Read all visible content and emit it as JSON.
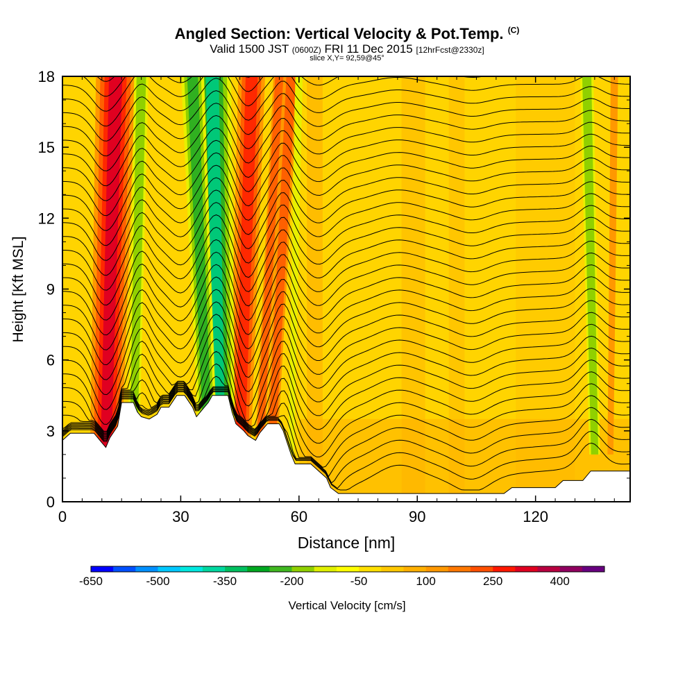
{
  "chart_data": {
    "type": "heatmap",
    "title": "Angled Section: Vertical Velocity & Pot.Temp.",
    "title_mark": "(C)",
    "subtitle_main": "Valid 1500 JST",
    "subtitle_utc": "(0600Z)",
    "subtitle_date": "FRI 11 Dec 2015",
    "subtitle_run": "[12hrFcst@2330z]",
    "slice_note": "slice X,Y= 92,59@45°",
    "xlabel": "Distance [nm]",
    "ylabel": "Height [Kft MSL]",
    "xlim": [
      0,
      144
    ],
    "ylim": [
      0,
      18
    ],
    "x_ticks": [
      "0",
      "30",
      "60",
      "90",
      "120"
    ],
    "y_ticks": [
      "0",
      "3",
      "6",
      "9",
      "12",
      "15",
      "18"
    ],
    "colorbar": {
      "label": "Vertical Velocity [cm/s]",
      "tick_labels": [
        "-650",
        "-500",
        "-350",
        "-200",
        "-50",
        "100",
        "250",
        "400"
      ],
      "colors": [
        "#0000ff",
        "#0050ff",
        "#0090ff",
        "#00c8ff",
        "#00e8e0",
        "#00d8a0",
        "#00c060",
        "#00a820",
        "#40b820",
        "#90d000",
        "#e0f000",
        "#ffff00",
        "#ffe000",
        "#ffc800",
        "#ffb000",
        "#ff9800",
        "#ff7800",
        "#ff5000",
        "#ff1800",
        "#e00020",
        "#b80040",
        "#900060",
        "#680080"
      ]
    },
    "terrain_kft": [
      [
        0,
        2.6
      ],
      [
        2,
        2.9
      ],
      [
        8,
        2.9
      ],
      [
        10,
        2.5
      ],
      [
        11,
        2.3
      ],
      [
        12,
        2.7
      ],
      [
        14,
        3.2
      ],
      [
        15,
        4.2
      ],
      [
        18,
        4.2
      ],
      [
        19,
        3.8
      ],
      [
        20,
        3.6
      ],
      [
        22,
        3.5
      ],
      [
        24,
        3.7
      ],
      [
        25,
        4
      ],
      [
        27,
        4
      ],
      [
        29,
        4.5
      ],
      [
        31,
        4.5
      ],
      [
        33,
        4
      ],
      [
        34,
        3.6
      ],
      [
        35,
        3.8
      ],
      [
        37,
        4.2
      ],
      [
        38,
        4.5
      ],
      [
        42,
        4.5
      ],
      [
        43,
        3.8
      ],
      [
        44,
        3.3
      ],
      [
        46,
        3
      ],
      [
        47,
        2.8
      ],
      [
        49,
        2.6
      ],
      [
        50,
        2.9
      ],
      [
        52,
        3.3
      ],
      [
        55,
        3.3
      ],
      [
        56,
        3.0
      ],
      [
        57,
        2.5
      ],
      [
        58,
        2.0
      ],
      [
        59,
        1.6
      ],
      [
        63,
        1.6
      ],
      [
        65,
        1.3
      ],
      [
        67,
        1.0
      ],
      [
        68,
        0.6
      ],
      [
        70,
        0.35
      ],
      [
        112,
        0.35
      ],
      [
        114,
        0.6
      ],
      [
        125,
        0.6
      ],
      [
        127,
        0.9
      ],
      [
        132,
        0.9
      ],
      [
        134,
        1.3
      ],
      [
        144,
        1.3
      ]
    ],
    "updraft_bands": [
      {
        "x_top": 13.5,
        "x_bottom": 11,
        "strength": 1.0
      },
      {
        "x_top": 48,
        "x_bottom": 45,
        "strength": 0.85
      },
      {
        "x_top": 58,
        "x_bottom": 53,
        "strength": 0.55
      },
      {
        "x_top": 55,
        "x_bottom": 50,
        "strength": 0.4
      },
      {
        "x_top": 140,
        "x_bottom": 139,
        "strength": 0.3
      }
    ],
    "downdraft_bands": [
      {
        "x_top": 20,
        "x_bottom": 18,
        "strength": 0.55
      },
      {
        "x_top": 38,
        "x_bottom": 40,
        "strength": 0.95
      },
      {
        "x_top": 33,
        "x_bottom": 37,
        "strength": 0.7
      },
      {
        "x_top": 60,
        "x_bottom": 58,
        "strength": 0.3
      },
      {
        "x_top": 133,
        "x_bottom": 135,
        "strength": 0.5
      }
    ],
    "isentrope_count": 34
  }
}
